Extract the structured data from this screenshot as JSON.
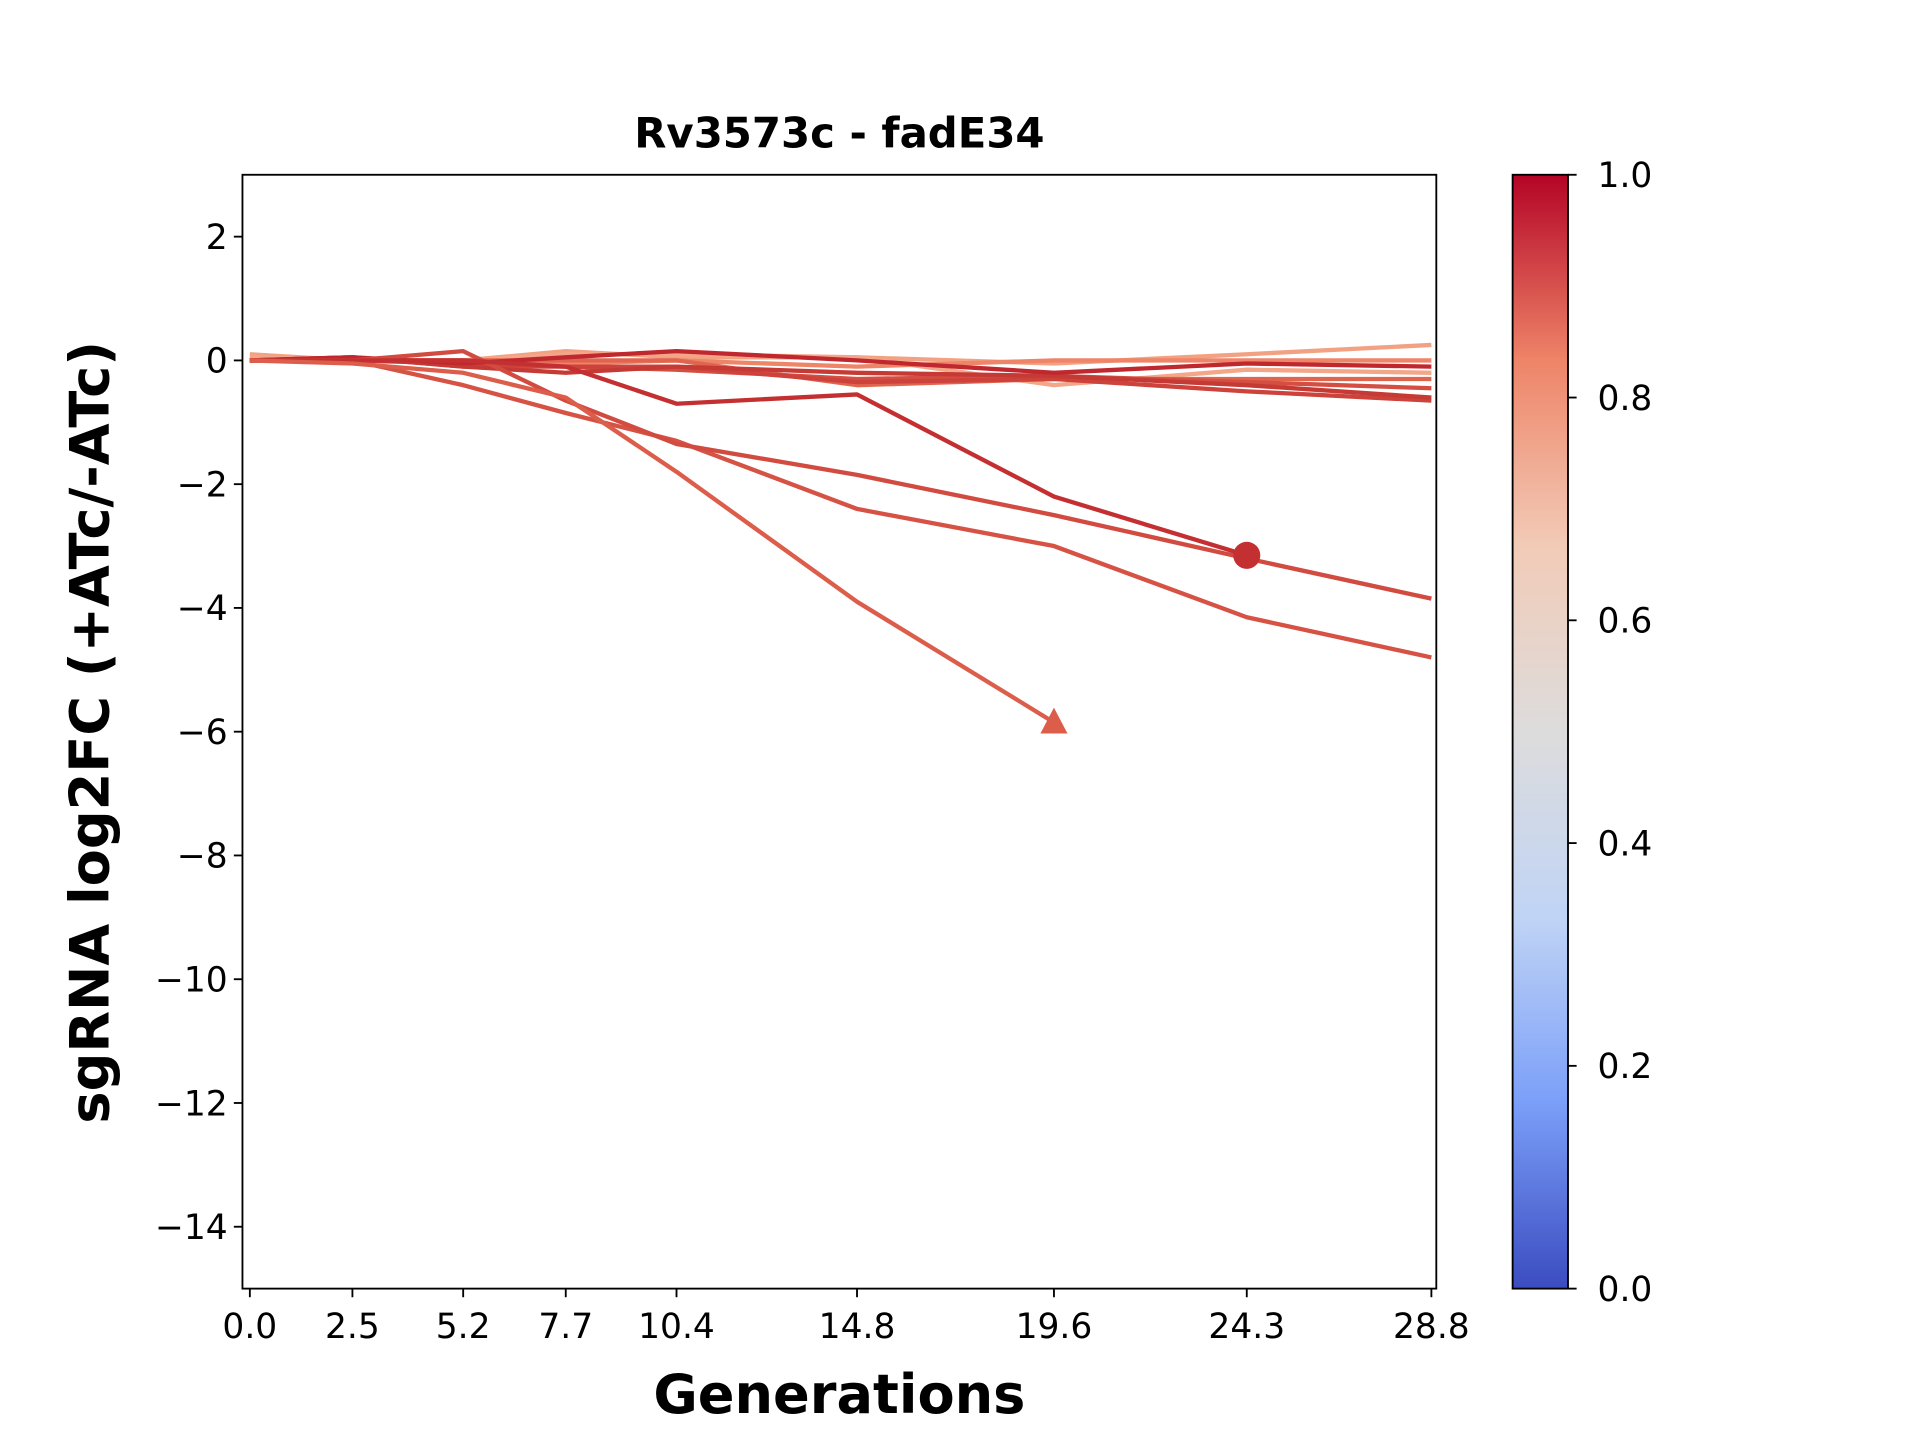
{
  "chart_data": {
    "type": "line",
    "title": "Rv3573c - fadE34",
    "xlabel": "Generations",
    "ylabel": "sgRNA log2FC (+ATc/-ATc)",
    "x": [
      0,
      2.5,
      5.2,
      7.7,
      10.4,
      14.8,
      19.6,
      24.3,
      28.8
    ],
    "xlim": [
      -0.18,
      28.92
    ],
    "xticks": [
      {
        "value": 0,
        "label": "0.0"
      },
      2.5,
      5.2,
      7.7,
      10.4,
      14.8,
      19.6,
      24.3,
      28.8
    ],
    "ylim": [
      -15,
      3
    ],
    "yticks": [
      {
        "value": -14,
        "label": "−14"
      },
      {
        "value": -12,
        "label": "−12"
      },
      {
        "value": -10,
        "label": "−10"
      },
      {
        "value": -8,
        "label": "−8"
      },
      {
        "value": -6,
        "label": "−6"
      },
      {
        "value": -4,
        "label": "−4"
      },
      {
        "value": -2,
        "label": "−2"
      },
      0,
      2
    ],
    "series": [
      {
        "color": "#f2a282",
        "values": [
          0.1,
          0,
          0,
          0.15,
          0.05,
          0.05,
          -0.05,
          0.1,
          0.25
        ]
      },
      {
        "color": "#f4a688",
        "values": [
          0.05,
          0,
          0,
          0.1,
          0.1,
          0.05,
          -0.4,
          -0.15,
          -0.2
        ]
      },
      {
        "color": "#ee8468",
        "values": [
          0,
          0,
          0,
          -0.05,
          0,
          -0.1,
          0,
          0,
          0
        ]
      },
      {
        "color": "#e0654f",
        "values": [
          0,
          0,
          0,
          0,
          0,
          -0.4,
          -0.3,
          -0.3,
          -0.3
        ]
      },
      {
        "color": "#d44e41",
        "values": [
          0,
          0.05,
          -0.1,
          -0.1,
          -0.15,
          -0.3,
          -0.25,
          -0.35,
          -0.45
        ]
      },
      {
        "color": "#cd423b",
        "values": [
          0,
          0,
          -0.05,
          -0.1,
          -0.1,
          -0.35,
          -0.3,
          -0.5,
          -0.65
        ]
      },
      {
        "color": "#c63a35",
        "values": [
          0,
          0.05,
          -0.1,
          -0.2,
          -0.1,
          -0.2,
          -0.25,
          -0.4,
          -0.6
        ]
      },
      {
        "color": "#c0282f",
        "values": [
          0,
          0.05,
          -0.05,
          0.05,
          0.15,
          0,
          -0.2,
          -0.05,
          -0.1
        ]
      },
      {
        "color": "#d65244",
        "values": [
          0,
          0,
          -0.4,
          -0.85,
          -1.3,
          -2.4,
          -3.0,
          -4.15,
          -4.8
        ]
      },
      {
        "color": "#d24b40",
        "values": [
          0,
          0,
          0.15,
          -0.65,
          -1.35,
          -1.85,
          -2.5,
          -3.2,
          -3.85
        ]
      },
      {
        "color": "#c43032",
        "marker": "circle",
        "values": [
          0,
          0,
          0,
          -0.1,
          -0.7,
          -0.55,
          -2.2,
          -3.15,
          null
        ]
      },
      {
        "color": "#dc5d4a",
        "marker": "triangle",
        "values": [
          0,
          -0.05,
          -0.2,
          -0.6,
          -1.8,
          -3.9,
          -5.85,
          null,
          null
        ]
      }
    ],
    "colorbar": {
      "lim": [
        0,
        1
      ],
      "ticks": [
        {
          "value": 0,
          "label": "0.0"
        },
        0.2,
        0.4,
        0.6,
        0.8,
        {
          "value": 1,
          "label": "1.0"
        }
      ],
      "colors": [
        "#3b4cc0",
        "#7b9ff9",
        "#c0d4f5",
        "#dddcdc",
        "#f2cbb7",
        "#ee8468",
        "#b40426"
      ]
    }
  }
}
